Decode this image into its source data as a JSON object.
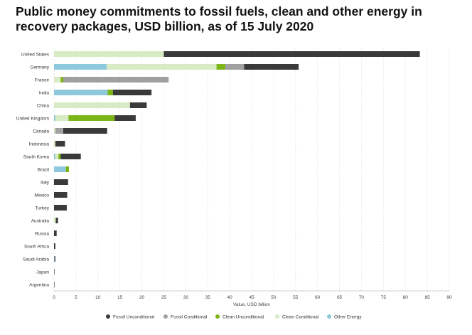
{
  "chart_data": {
    "type": "bar",
    "orientation": "horizontal",
    "stacked": true,
    "title": "Public money commitments to fossil fuels, clean and other energy in recovery packages, USD billion, as of 15 July 2020",
    "xlabel": "Value, USD billion",
    "ylabel": "",
    "xlim": [
      0,
      90
    ],
    "xticks": [
      "0",
      "5",
      "10",
      "15",
      "20",
      "25",
      "30",
      "35",
      "40",
      "45",
      "50",
      "55",
      "60",
      "65",
      "70",
      "75",
      "80",
      "85",
      "90"
    ],
    "grid": true,
    "legend_position": "bottom",
    "categories": [
      "United States",
      "Germany",
      "France",
      "India",
      "China",
      "United Kingdom",
      "Canada",
      "Indonesia",
      "South Korea",
      "Brazil",
      "Italy",
      "Mexico",
      "Turkey",
      "Australia",
      "Russia",
      "South Africa",
      "Saudi Arabia",
      "Japan",
      "Argentina"
    ],
    "stack_order": [
      "Other Energy",
      "Clean Conditional",
      "Clean Unconditional",
      "Fossil Conditional",
      "Fossil Unconditional"
    ],
    "legend_order": [
      "Fossil Unconditional",
      "Fossil Conditional",
      "Clean Unconditional",
      "Clean Conditional",
      "Other Energy"
    ],
    "series": [
      {
        "name": "Fossil Unconditional",
        "color": "#3a3a3a",
        "values": [
          58.3,
          12.4,
          0,
          8.8,
          3.8,
          4.8,
          10.0,
          2.2,
          4.6,
          0,
          3.2,
          3.0,
          2.9,
          0.5,
          0.6,
          0.3,
          0.2,
          0.05,
          0.05
        ]
      },
      {
        "name": "Fossil Conditional",
        "color": "#a0a0a0",
        "values": [
          0,
          4.3,
          24.0,
          0,
          0,
          0,
          1.8,
          0,
          0,
          0,
          0,
          0,
          0,
          0,
          0,
          0,
          0,
          0,
          0
        ]
      },
      {
        "name": "Clean Unconditional",
        "color": "#7cb518",
        "values": [
          0,
          2.0,
          0.6,
          1.2,
          0,
          10.5,
          0,
          0,
          0.5,
          0.7,
          0,
          0,
          0,
          0,
          0,
          0,
          0,
          0,
          0
        ]
      },
      {
        "name": "Clean Conditional",
        "color": "#d8ebc4",
        "values": [
          25.0,
          25.0,
          1.5,
          0,
          17.3,
          3.0,
          0.3,
          0.3,
          0.7,
          0,
          0,
          0,
          0,
          0.4,
          0,
          0,
          0,
          0,
          0
        ]
      },
      {
        "name": "Other Energy",
        "color": "#8ec8dc",
        "values": [
          0,
          12.0,
          0,
          12.2,
          0,
          0.3,
          0,
          0,
          0.3,
          2.7,
          0,
          0,
          0,
          0,
          0,
          0,
          0.1,
          0,
          0
        ]
      }
    ]
  }
}
